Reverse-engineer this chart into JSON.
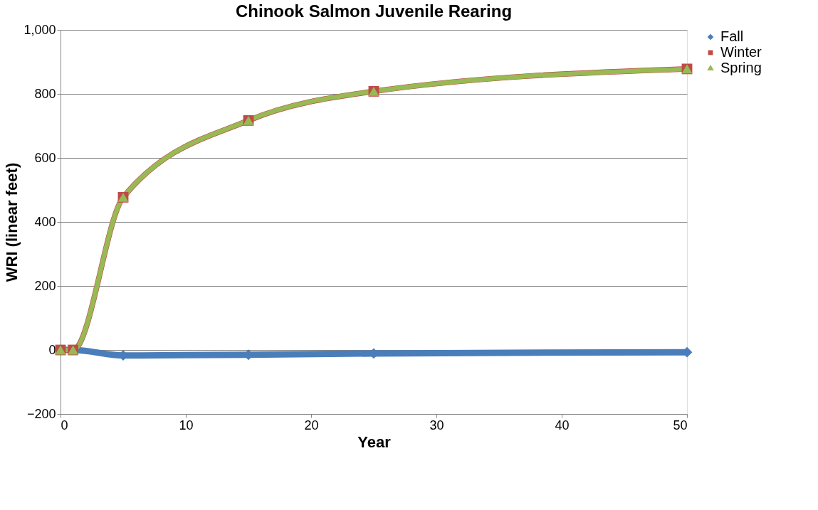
{
  "chart_data": {
    "type": "line",
    "title": "Chinook Salmon Juvenile Rearing",
    "xlabel": "Year",
    "ylabel": "WRI (linear feet)",
    "x": [
      0,
      1,
      5,
      15,
      25,
      50
    ],
    "series": [
      {
        "name": "Fall",
        "color": "#4a7ebb",
        "marker": "diamond",
        "values": [
          0,
          0,
          -17,
          -15,
          -11,
          -7
        ]
      },
      {
        "name": "Winter",
        "color": "#be4b48",
        "marker": "square",
        "values": [
          0,
          0,
          477,
          717,
          808,
          878
        ]
      },
      {
        "name": "Spring",
        "color": "#98b954",
        "marker": "triangle",
        "values": [
          0,
          0,
          477,
          717,
          808,
          878
        ]
      }
    ],
    "xlim": [
      0,
      50
    ],
    "xticks": [
      0,
      10,
      20,
      30,
      40,
      50
    ],
    "ylim": [
      -200,
      1000
    ],
    "yticks": [
      -200,
      0,
      200,
      400,
      600,
      800,
      {
        "value": 1000,
        "label": "1,000"
      }
    ],
    "grid": "y",
    "legend": "right",
    "line_style": "solid"
  }
}
